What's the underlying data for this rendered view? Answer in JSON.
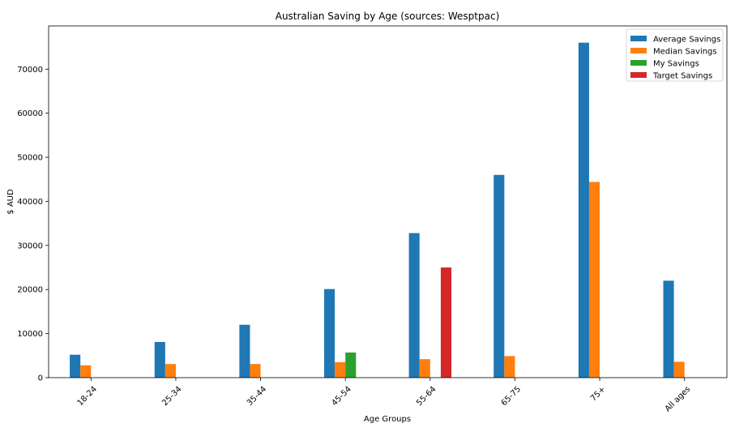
{
  "chart_data": {
    "type": "bar",
    "title": "Australian Saving by Age (sources: Wesptpac)",
    "xlabel": "Age Groups",
    "ylabel": "$ AUD",
    "categories": [
      "18-24",
      "25-34",
      "35-44",
      "45-54",
      "55-64",
      "65-75",
      "75+",
      "All ages"
    ],
    "series": [
      {
        "name": "Average Savings",
        "color": "#1f77b4",
        "values": [
          5200,
          8100,
          12000,
          20100,
          32800,
          46000,
          76000,
          22000
        ]
      },
      {
        "name": "Median Savings",
        "color": "#ff7f0e",
        "values": [
          2800,
          3100,
          3100,
          3500,
          4200,
          4900,
          44400,
          3600
        ]
      },
      {
        "name": "My Savings",
        "color": "#2ca02c",
        "values": [
          0,
          0,
          0,
          5700,
          0,
          0,
          0,
          0
        ]
      },
      {
        "name": "Target Savings",
        "color": "#d62728",
        "values": [
          0,
          0,
          0,
          0,
          25000,
          0,
          0,
          0
        ]
      }
    ],
    "ylim": [
      0,
      79800
    ],
    "yticks": [
      0,
      10000,
      20000,
      30000,
      40000,
      50000,
      60000,
      70000
    ],
    "grid": false,
    "legend_position": "top-right"
  }
}
